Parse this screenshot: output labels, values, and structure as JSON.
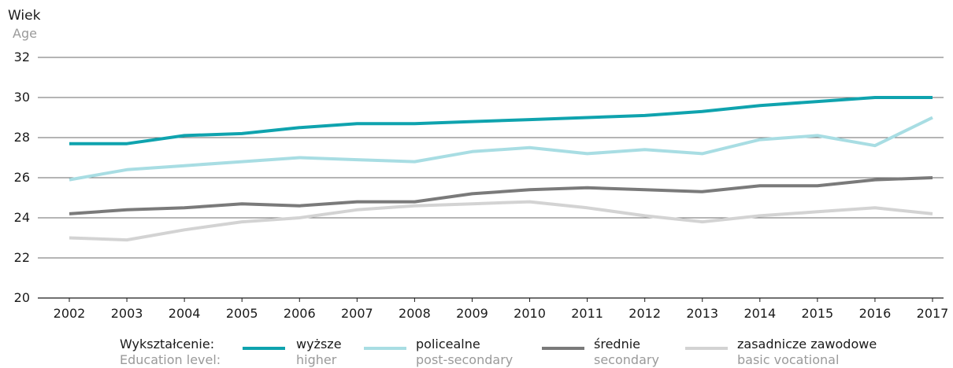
{
  "chart_data": {
    "type": "line",
    "ylabel": "Wiek",
    "ylabel_en": "Age",
    "ylim": [
      20,
      32
    ],
    "yticks": [
      20,
      22,
      24,
      26,
      28,
      30,
      32
    ],
    "grid": true,
    "x": [
      "2002",
      "2003",
      "2004",
      "2005",
      "2006",
      "2007",
      "2008",
      "2009",
      "2010",
      "2011",
      "2012",
      "2013",
      "2014",
      "2015",
      "2016",
      "2017"
    ],
    "series": [
      {
        "name": "wyższe",
        "name_en": "higher",
        "color": "#0fa3ae",
        "values": [
          27.7,
          27.7,
          28.1,
          28.2,
          28.5,
          28.7,
          28.7,
          28.8,
          28.9,
          29.0,
          29.1,
          29.3,
          29.6,
          29.8,
          30.0,
          30.0
        ]
      },
      {
        "name": "policealne",
        "name_en": "post-secondary",
        "color": "#a8dde3",
        "values": [
          25.9,
          26.4,
          26.6,
          26.8,
          27.0,
          26.9,
          26.8,
          27.3,
          27.5,
          27.2,
          27.4,
          27.2,
          27.9,
          28.1,
          27.6,
          29.0
        ]
      },
      {
        "name": "średnie",
        "name_en": "secondary",
        "color": "#7a7a7a",
        "values": [
          24.2,
          24.4,
          24.5,
          24.7,
          24.6,
          24.8,
          24.8,
          25.2,
          25.4,
          25.5,
          25.4,
          25.3,
          25.6,
          25.6,
          25.9,
          26.0
        ]
      },
      {
        "name": "zasadnicze zawodowe",
        "name_en": "basic vocational",
        "color": "#d3d3d3",
        "values": [
          23.0,
          22.9,
          23.4,
          23.8,
          24.0,
          24.4,
          24.6,
          24.7,
          24.8,
          24.5,
          24.1,
          23.8,
          24.1,
          24.3,
          24.5,
          24.2
        ]
      }
    ],
    "legend_title": "Wykształcenie:",
    "legend_title_en": "Education level:",
    "legend_position": "bottom"
  }
}
